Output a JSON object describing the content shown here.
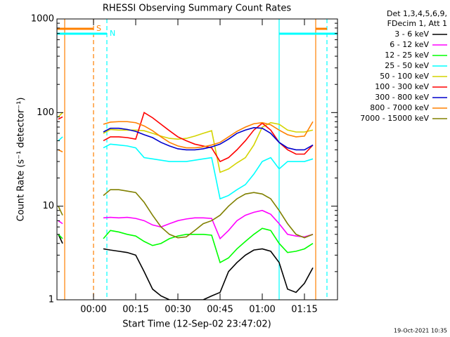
{
  "chart_data": {
    "type": "line",
    "title": "RHESSI Observing Summary Count Rates",
    "xlabel": "Start Time (12-Sep-02 23:47:02)",
    "ylabel": "Count Rate (s⁻¹ detector⁻¹)",
    "legend_header": [
      "Det 1,3,4,5,6,9,",
      "FDecim 1, Att 1"
    ],
    "footer": "19-Oct-2021 10:35",
    "log_y": true,
    "xlim": [
      -13,
      86.75
    ],
    "ylim": [
      1,
      1000
    ],
    "xticks": [
      {
        "value": 0,
        "label": "00:00"
      },
      {
        "value": 15,
        "label": "00:15"
      },
      {
        "value": 30,
        "label": "00:30"
      },
      {
        "value": 45,
        "label": "00:45"
      },
      {
        "value": 60,
        "label": "01:00"
      },
      {
        "value": 75,
        "label": "01:15"
      }
    ],
    "yticks": [
      1,
      10,
      100,
      1000
    ],
    "x": [
      -12.5,
      -11,
      -7,
      3.5,
      6,
      9,
      12,
      15,
      18,
      21,
      24,
      27,
      30,
      33,
      36,
      39,
      42,
      45,
      48,
      51,
      54,
      57,
      60,
      63,
      66,
      69,
      72,
      75,
      78
    ],
    "series": [
      {
        "name": "3 - 6 keV",
        "color": "#000000",
        "values": [
          5,
          4,
          null,
          3.5,
          3.4,
          3.3,
          3.2,
          3,
          2,
          1.3,
          1.1,
          1,
          1,
          1,
          1,
          1,
          1.1,
          1.2,
          2,
          2.5,
          3,
          3.4,
          3.5,
          3.3,
          2.5,
          1.3,
          1.2,
          1.5,
          2.2
        ]
      },
      {
        "name": "6 - 12 keV",
        "color": "#ff00ff",
        "values": [
          7,
          6.5,
          null,
          7.5,
          7.6,
          7.5,
          7.6,
          7.4,
          7,
          6.3,
          6,
          6.5,
          7,
          7.3,
          7.5,
          7.5,
          7.4,
          4.5,
          5.5,
          7,
          8,
          8.6,
          9,
          8.2,
          6.5,
          5,
          4.8,
          4.7,
          5
        ]
      },
      {
        "name": "12 - 25 keV",
        "color": "#00ff00",
        "values": [
          5,
          4.5,
          null,
          4.5,
          5.5,
          5.3,
          5,
          4.8,
          4.2,
          3.8,
          4,
          4.5,
          4.8,
          5,
          5,
          5,
          4.9,
          2.5,
          2.8,
          3.5,
          4.2,
          5,
          5.8,
          5.5,
          4,
          3.2,
          3.3,
          3.5,
          4
        ]
      },
      {
        "name": "25 - 50 keV",
        "color": "#00ffff",
        "values": [
          50,
          55,
          null,
          42,
          46,
          45,
          44,
          42,
          33,
          32,
          31,
          30,
          30,
          30,
          31,
          32,
          33,
          12,
          13,
          15,
          17,
          22,
          30,
          33,
          25,
          30,
          30,
          30,
          32
        ]
      },
      {
        "name": "50 - 100 keV",
        "color": "#d4d400",
        "values": [
          90,
          100,
          null,
          60,
          66,
          65,
          65,
          65,
          64,
          60,
          56,
          53,
          52,
          53,
          56,
          60,
          64,
          23,
          25,
          29,
          33,
          45,
          70,
          78,
          75,
          65,
          62,
          62,
          65
        ]
      },
      {
        "name": "100 - 300 keV",
        "color": "#ff0000",
        "values": [
          85,
          90,
          null,
          50,
          55,
          55,
          54,
          52,
          100,
          88,
          75,
          64,
          55,
          50,
          46,
          44,
          42,
          30,
          33,
          40,
          50,
          65,
          77,
          65,
          48,
          40,
          36,
          36,
          45
        ]
      },
      {
        "name": "300 - 800 keV",
        "color": "#0000cc",
        "values": [
          null,
          null,
          null,
          62,
          68,
          68,
          66,
          63,
          58,
          54,
          48,
          44,
          41,
          40,
          40,
          41,
          43,
          46,
          52,
          60,
          65,
          69,
          68,
          60,
          48,
          42,
          40,
          40,
          45
        ]
      },
      {
        "name": "800 - 7000 keV",
        "color": "#ff8000",
        "values": [
          40,
          38,
          null,
          75,
          79,
          80,
          80,
          78,
          72,
          64,
          55,
          48,
          44,
          42,
          42,
          43,
          45,
          48,
          55,
          63,
          70,
          76,
          78,
          74,
          65,
          58,
          55,
          56,
          80
        ]
      },
      {
        "name": "7000 - 15000 keV",
        "color": "#808000",
        "values": [
          10,
          8,
          null,
          13,
          15,
          15,
          14.5,
          14,
          11,
          8,
          6,
          5,
          4.6,
          4.7,
          5.5,
          6.5,
          7,
          8,
          10,
          12,
          13.5,
          14,
          13.5,
          12,
          9,
          6.5,
          5,
          4.6,
          5
        ]
      }
    ],
    "markers": [
      {
        "x": -10.25,
        "color": "#ff8000",
        "dashed": false
      },
      {
        "x": 0,
        "color": "#ff8000",
        "dashed": true
      },
      {
        "x": 4.75,
        "color": "#00ffff",
        "dashed": true
      },
      {
        "x": 66,
        "color": "#00ffff",
        "dashed": false
      },
      {
        "x": 79,
        "color": "#ff8000",
        "dashed": false
      },
      {
        "x": 83,
        "color": "#00ffff",
        "dashed": true
      }
    ],
    "flag_bars": [
      {
        "label": "S",
        "color": "#ff8000",
        "xlim": [
          -13,
          0
        ],
        "y": 785
      },
      {
        "color": "#ff8000",
        "xlim": [
          79,
          83
        ],
        "y": 785
      },
      {
        "label": "N",
        "color": "#00ffff",
        "xlim": [
          -13,
          4.75
        ],
        "y": 696
      },
      {
        "color": "#00ffff",
        "xlim": [
          66,
          86.75
        ],
        "y": 696
      }
    ]
  }
}
